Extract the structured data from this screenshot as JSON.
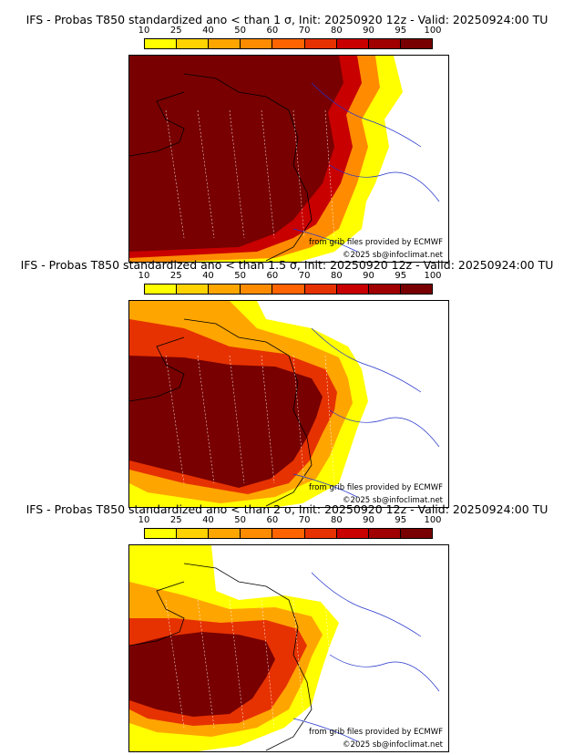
{
  "colorbar": {
    "ticks": [
      "10",
      "25",
      "40",
      "50",
      "60",
      "70",
      "80",
      "90",
      "95",
      "100"
    ],
    "colors": [
      "#ffff00",
      "#ffd200",
      "#ffa500",
      "#ff8c00",
      "#ff6400",
      "#e63200",
      "#c80000",
      "#a00000",
      "#780000"
    ]
  },
  "panels": [
    {
      "title": "IFS - Probas T850  standardized ano < than 1 σ, Init: 20250920 12z - Valid: 20250924:00 TU",
      "level": 1
    },
    {
      "title": "IFS - Probas T850  standardized ano < than 1.5 σ, Init: 20250920 12z - Valid: 20250924:00 TU",
      "level": 2
    },
    {
      "title": "IFS - Probas T850  standardized ano < than 2 σ, Init: 20250920 12z - Valid: 20250924:00 TU",
      "level": 3
    }
  ],
  "credits": {
    "source": "from grib files provided by ECMWF",
    "copyright": "©2025 sb@infoclimat.net"
  }
}
